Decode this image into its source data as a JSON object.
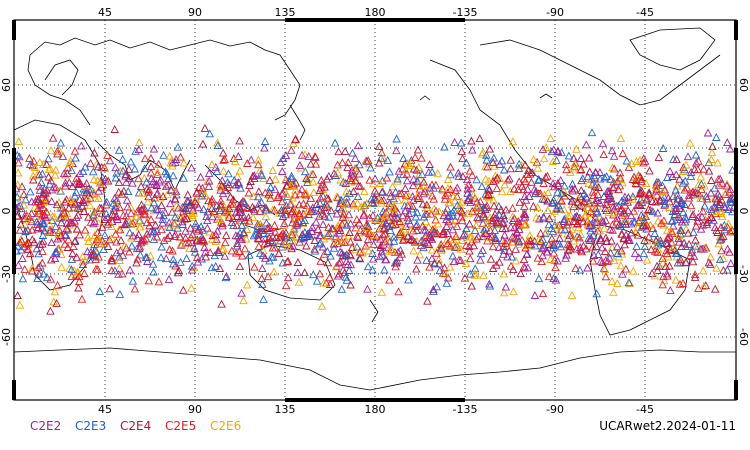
{
  "map": {
    "projection": "cylindrical-equidistant",
    "central_longitude": 180,
    "grid": true,
    "lon_ticks": [
      "45",
      "90",
      "135",
      "180",
      "-135",
      "-90",
      "-45"
    ],
    "lat_ticks": [
      "60",
      "30",
      "0",
      "-30",
      "-60"
    ],
    "coastlines": true
  },
  "legend": {
    "items": [
      {
        "label": "C2E2",
        "color": "#a020a0"
      },
      {
        "label": "C2E3",
        "color": "#1e64d2"
      },
      {
        "label": "C2E4",
        "color": "#b4143c"
      },
      {
        "label": "C2E5",
        "color": "#e61e1e"
      },
      {
        "label": "C2E6",
        "color": "#f5a500"
      }
    ]
  },
  "footer": {
    "title": "UCARwet2.2024-01-11"
  },
  "chart_data": {
    "type": "scatter",
    "marker": "triangle",
    "lat_range": [
      -50,
      45
    ],
    "series": [
      {
        "name": "C2E2",
        "color": "#a020a0"
      },
      {
        "name": "C2E3",
        "color": "#1e64d2"
      },
      {
        "name": "C2E4",
        "color": "#b4143c"
      },
      {
        "name": "C2E5",
        "color": "#e61e1e"
      },
      {
        "name": "C2E6",
        "color": "#f5a500"
      }
    ]
  }
}
